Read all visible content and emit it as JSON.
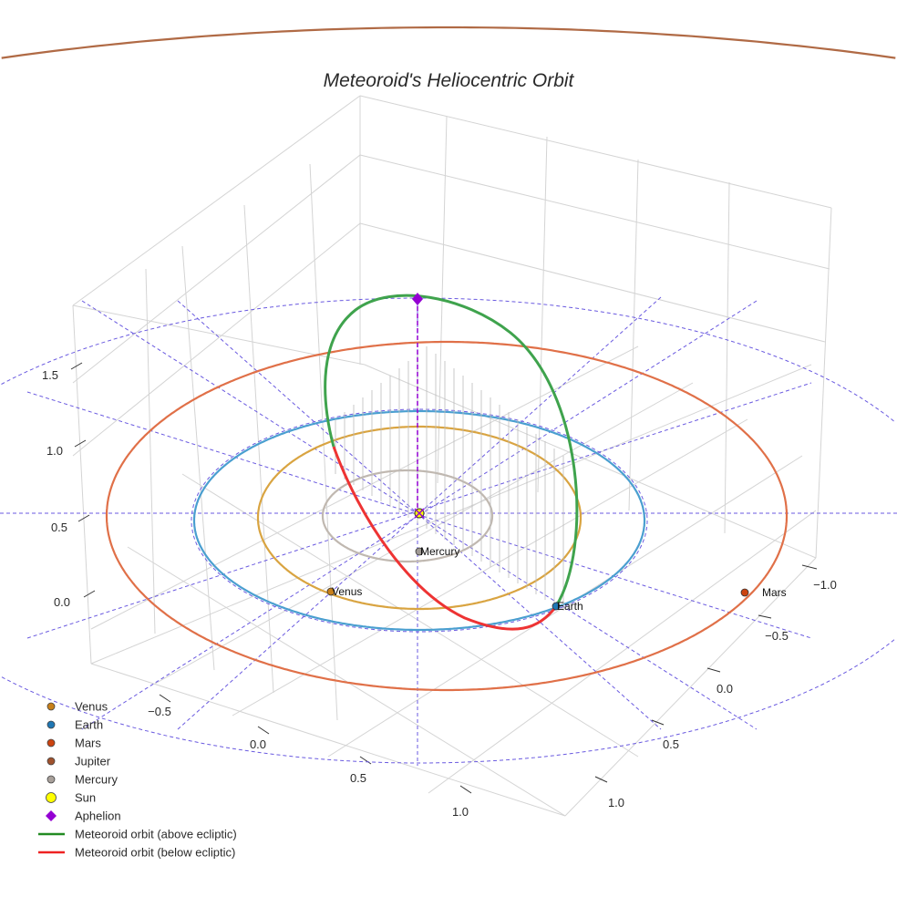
{
  "chart_data": {
    "type": "scatter3d",
    "title": "Meteoroid's Heliocentric Orbit",
    "axes": {
      "x": {
        "ticks": [
          "−0.5",
          "0.0",
          "0.5",
          "1.0"
        ],
        "tick_values": [
          -0.5,
          0.0,
          0.5,
          1.0
        ]
      },
      "y": {
        "ticks": [
          "−1.0",
          "−0.5",
          "0.0",
          "0.5",
          "1.0"
        ],
        "tick_values": [
          -1.0,
          -0.5,
          0.0,
          0.5,
          1.0
        ]
      },
      "z": {
        "ticks": [
          "0.0",
          "0.5",
          "1.0",
          "1.5"
        ],
        "tick_values": [
          0.0,
          0.5,
          1.0,
          1.5
        ]
      }
    },
    "grid": true,
    "legend_position": "bottom-left",
    "orbits": [
      {
        "name": "Mercury",
        "radius_au": 0.39,
        "color": "#c0b8b0"
      },
      {
        "name": "Venus",
        "radius_au": 0.72,
        "color": "#d9a441"
      },
      {
        "name": "Earth",
        "radius_au": 1.0,
        "color": "#4a9fd0"
      },
      {
        "name": "Mars",
        "radius_au": 1.52,
        "color": "#e07048"
      },
      {
        "name": "Jupiter",
        "radius_au": 5.2,
        "color": "#b06a45"
      }
    ],
    "planet_labels": [
      {
        "name": "Mercury",
        "color": "#a09a95"
      },
      {
        "name": "Venus",
        "color": "#c8801a"
      },
      {
        "name": "Earth",
        "color": "#1f77b4"
      },
      {
        "name": "Mars",
        "color": "#cc4410"
      }
    ],
    "meteoroid_orbit": {
      "aphelion_z_approx": 1.75,
      "above_color": "#3fa34d",
      "below_color": "#ee3333"
    },
    "legend": [
      {
        "label": "Venus",
        "symbol": "circle",
        "color": "#c8801a"
      },
      {
        "label": "Earth",
        "symbol": "circle",
        "color": "#1f77b4"
      },
      {
        "label": "Mars",
        "symbol": "circle",
        "color": "#cc4410"
      },
      {
        "label": "Jupiter",
        "symbol": "circle",
        "color": "#a0522d"
      },
      {
        "label": "Mercury",
        "symbol": "circle",
        "color": "#a8a09a"
      },
      {
        "label": "Sun",
        "symbol": "circle-large",
        "color": "#ffff00"
      },
      {
        "label": "Aphelion",
        "symbol": "diamond",
        "color": "#9400d3"
      },
      {
        "label": "Meteoroid orbit (above ecliptic)",
        "symbol": "line",
        "color": "#228b22"
      },
      {
        "label": "Meteoroid orbit (below ecliptic)",
        "symbol": "line",
        "color": "#ee2222"
      }
    ]
  }
}
